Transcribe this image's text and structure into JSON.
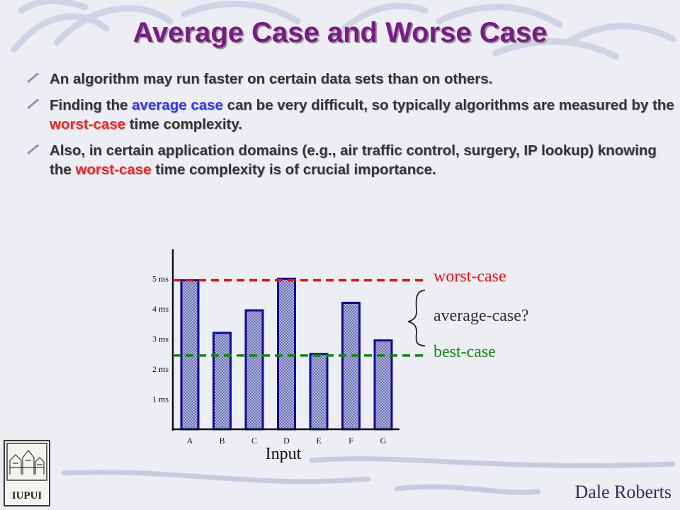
{
  "slide": {
    "title": "Average Case and Worse Case",
    "author": "Dale Roberts",
    "logo_text": "IUPUI"
  },
  "bullets": [
    {
      "parts": [
        {
          "text": "An algorithm may run faster on certain data sets than on others.",
          "style": "normal"
        }
      ]
    },
    {
      "parts": [
        {
          "text": "Finding the ",
          "style": "normal"
        },
        {
          "text": "average case",
          "style": "blue"
        },
        {
          "text": " can be very difficult, so typically algorithms are measured by the ",
          "style": "normal"
        },
        {
          "text": "worst-case",
          "style": "red"
        },
        {
          "text": " time complexity.",
          "style": "normal"
        }
      ]
    },
    {
      "parts": [
        {
          "text": "Also, in certain application domains (e.g., air traffic control, surgery, IP lookup) knowing the ",
          "style": "normal"
        },
        {
          "text": "worst-case",
          "style": "red"
        },
        {
          "text": " time complexity is of crucial importance.",
          "style": "normal"
        }
      ]
    }
  ],
  "colors": {
    "title": "#7a1a86",
    "bar_fill": "#5a5aa8",
    "bar_border": "#0b0b9a",
    "worst_line": "#ee1111",
    "best_line": "#118811"
  },
  "chart_data": {
    "type": "bar",
    "categories": [
      "A",
      "B",
      "C",
      "D",
      "E",
      "F",
      "G"
    ],
    "values": [
      4.95,
      3.2,
      3.95,
      5.0,
      2.5,
      4.2,
      2.95
    ],
    "xlabel": "Input",
    "ylabel": "",
    "y_ticks": [
      "1 ms",
      "2 ms",
      "3 ms",
      "4 ms",
      "5 ms"
    ],
    "ylim": [
      0,
      5.5
    ],
    "annotations": [
      {
        "label": "worst-case",
        "value": 4.95,
        "color": "#ee1111"
      },
      {
        "label": "best-case",
        "value": 2.45,
        "color": "#118811"
      },
      {
        "label": "average-case?",
        "color": "#333333"
      }
    ]
  }
}
